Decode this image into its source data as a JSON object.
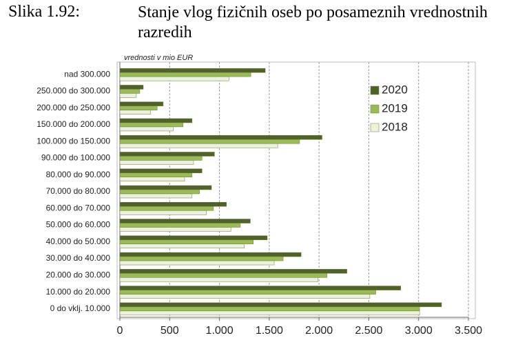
{
  "chart_data": {
    "type": "hbar",
    "figure_label": "Slika 1.92:",
    "title": "Stanje vlog fizičnih oseb po posameznih vrednostnih razredih",
    "x_label": "vrednosti v mio EUR",
    "categories": [
      "nad 300.000",
      "250.000 do 300.000",
      "200.000 do 250.000",
      "150.000 do 200.000",
      "100.000 do 150.000",
      "90.000 do 100.000",
      "80.000 do 90.000",
      "70.000 do 80.000",
      "60.000 do 70.000",
      "50.000 do 60.000",
      "40.000 do 50.000",
      "30.000 do 40.000",
      "20.000 do 30.000",
      "10.000 do 20.000",
      "0 do vklj. 10.000"
    ],
    "series": [
      {
        "name": "2020",
        "color": "#4f6228",
        "values": [
          1460,
          235,
          435,
          725,
          2030,
          950,
          825,
          920,
          1070,
          1310,
          1480,
          1820,
          2280,
          2820,
          3230
        ]
      },
      {
        "name": "2019",
        "color": "#9bbb59",
        "values": [
          1315,
          200,
          375,
          635,
          1805,
          825,
          725,
          800,
          940,
          1210,
          1340,
          1640,
          2080,
          2570,
          3010
        ]
      },
      {
        "name": "2018",
        "color": "#ebf1de",
        "values": [
          1095,
          165,
          310,
          535,
          1585,
          740,
          650,
          725,
          870,
          1115,
          1250,
          1550,
          1990,
          2510,
          3010
        ]
      }
    ],
    "xlim": [
      0,
      3500
    ],
    "xticks": [
      0,
      500,
      {
        "value": 1000,
        "label": "1.000"
      },
      {
        "value": 1500,
        "label": "1.500"
      },
      {
        "value": 2000,
        "label": "2.000"
      },
      {
        "value": 2500,
        "label": "2.500"
      },
      {
        "value": 3000,
        "label": "3.000"
      },
      {
        "value": 3500,
        "label": "3.500"
      }
    ],
    "grid": true,
    "legend": "upper right"
  }
}
